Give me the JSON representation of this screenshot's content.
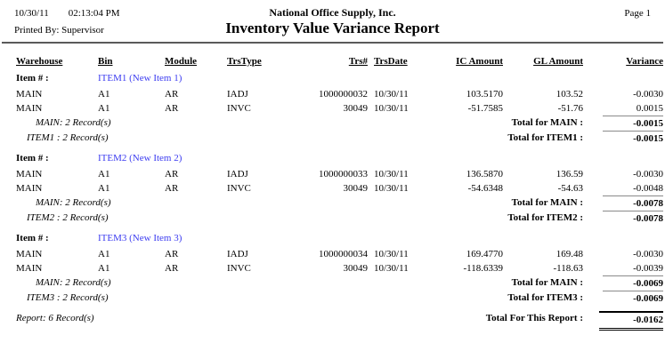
{
  "page": {
    "date": "10/30/11",
    "time": "02:13:04 PM",
    "printed_by_label": "Printed By:",
    "printed_by": "Supervisor",
    "company": "National Office Supply, Inc.",
    "title": "Inventory Value Variance Report",
    "page_label": "Page 1"
  },
  "table": {
    "headers": [
      "Warehouse",
      "Bin",
      "Module",
      "TrsType",
      "Trs#",
      "TrsDate",
      "IC Amount",
      "GL Amount",
      "Variance"
    ],
    "item_label": "Item # :",
    "groups": [
      {
        "item": "ITEM1 (New Item 1)",
        "rows": [
          {
            "warehouse": "MAIN",
            "bin": "A1",
            "module": "AR",
            "trstype": "IADJ",
            "trs": "1000000032",
            "trsdate": "10/30/11",
            "ic": "103.5170",
            "gl": "103.52",
            "variance": "-0.0030"
          },
          {
            "warehouse": "MAIN",
            "bin": "A1",
            "module": "AR",
            "trstype": "INVC",
            "trs": "30049",
            "trsdate": "10/30/11",
            "ic": "-51.7585",
            "gl": "-51.76",
            "variance": "0.0015"
          }
        ],
        "warehouse_count": "MAIN: 2 Record(s)",
        "warehouse_total_label": "Total for MAIN :",
        "warehouse_total": "-0.0015",
        "item_count": "ITEM1 : 2 Record(s)",
        "item_total_label": "Total for ITEM1 :",
        "item_total": "-0.0015"
      },
      {
        "item": "ITEM2 (New Item 2)",
        "rows": [
          {
            "warehouse": "MAIN",
            "bin": "A1",
            "module": "AR",
            "trstype": "IADJ",
            "trs": "1000000033",
            "trsdate": "10/30/11",
            "ic": "136.5870",
            "gl": "136.59",
            "variance": "-0.0030"
          },
          {
            "warehouse": "MAIN",
            "bin": "A1",
            "module": "AR",
            "trstype": "INVC",
            "trs": "30049",
            "trsdate": "10/30/11",
            "ic": "-54.6348",
            "gl": "-54.63",
            "variance": "-0.0048"
          }
        ],
        "warehouse_count": "MAIN: 2 Record(s)",
        "warehouse_total_label": "Total for MAIN :",
        "warehouse_total": "-0.0078",
        "item_count": "ITEM2 : 2 Record(s)",
        "item_total_label": "Total for ITEM2 :",
        "item_total": "-0.0078"
      },
      {
        "item": "ITEM3 (New Item 3)",
        "rows": [
          {
            "warehouse": "MAIN",
            "bin": "A1",
            "module": "AR",
            "trstype": "IADJ",
            "trs": "1000000034",
            "trsdate": "10/30/11",
            "ic": "169.4770",
            "gl": "169.48",
            "variance": "-0.0030"
          },
          {
            "warehouse": "MAIN",
            "bin": "A1",
            "module": "AR",
            "trstype": "INVC",
            "trs": "30049",
            "trsdate": "10/30/11",
            "ic": "-118.6339",
            "gl": "-118.63",
            "variance": "-0.0039"
          }
        ],
        "warehouse_count": "MAIN: 2 Record(s)",
        "warehouse_total_label": "Total for MAIN :",
        "warehouse_total": "-0.0069",
        "item_count": "ITEM3 : 2 Record(s)",
        "item_total_label": "Total for ITEM3 :",
        "item_total": "-0.0069"
      }
    ],
    "report_count": "Report: 6 Record(s)",
    "report_total_label": "Total For This Report :",
    "report_total": "-0.0162"
  },
  "colors": {
    "item_link": "#3b3bf0",
    "header_rule": "#5a5a5a",
    "total_overline": "#8a8a8a"
  }
}
